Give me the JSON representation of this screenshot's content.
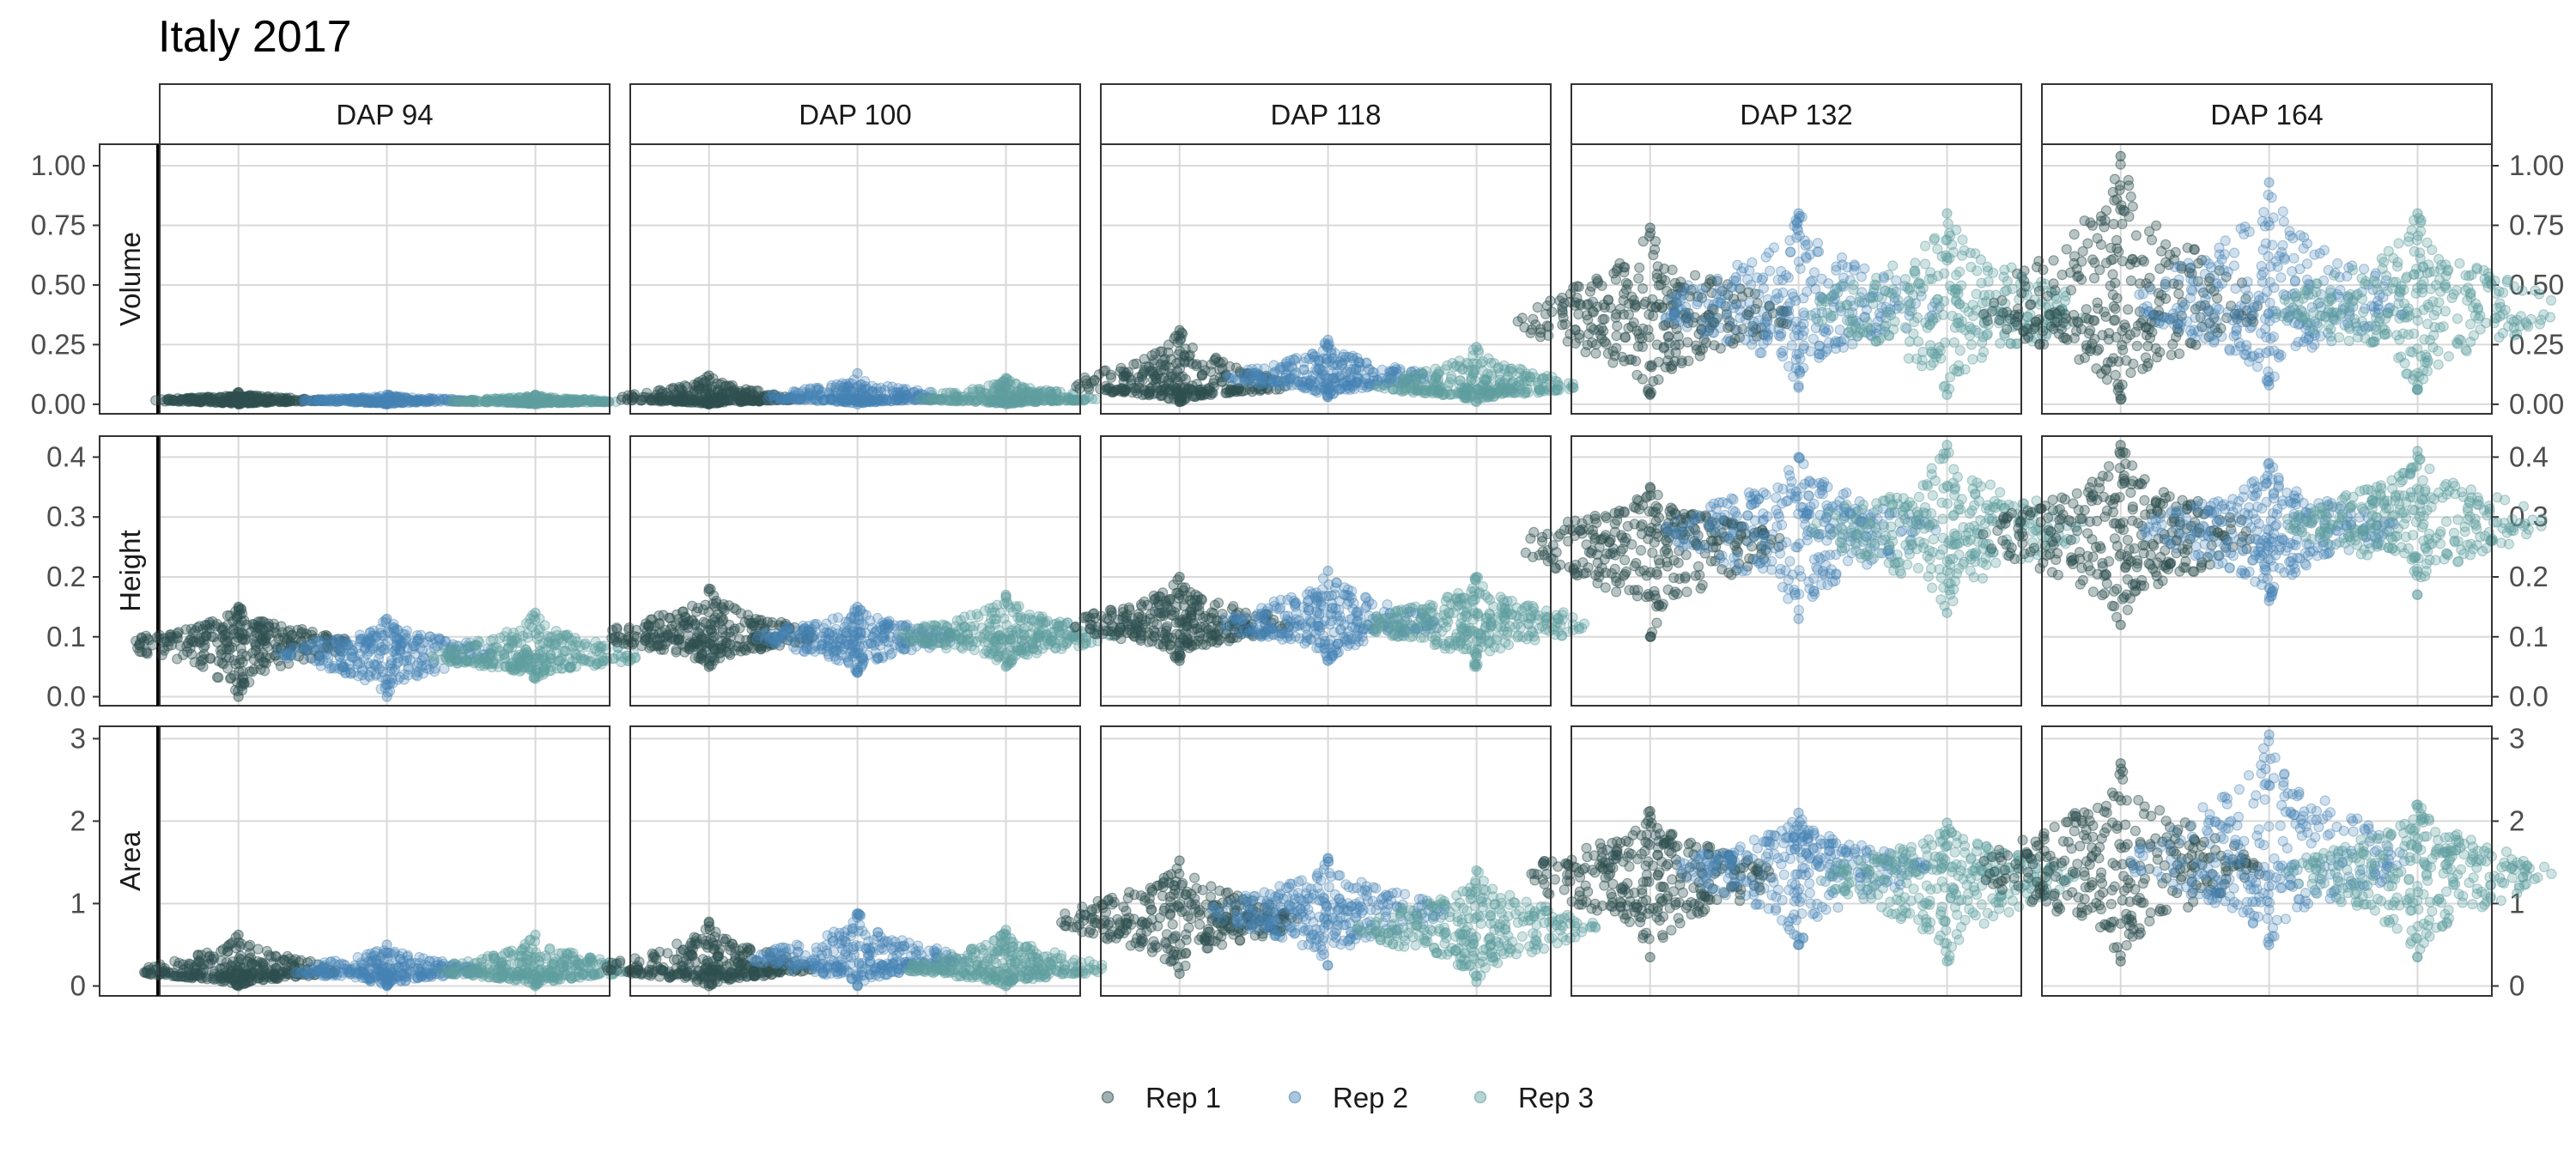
{
  "chart_data": {
    "type": "scatter",
    "subtype": "beeswarm-faceted",
    "title": "Italy 2017",
    "facet_columns": [
      "DAP 94",
      "DAP 100",
      "DAP 118",
      "DAP 132",
      "DAP 164"
    ],
    "facet_rows": [
      {
        "name": "Volume",
        "ylim": [
          -0.04,
          1.09
        ],
        "ticks": [
          0,
          0.25,
          0.5,
          0.75,
          1.0
        ],
        "tick_labels": [
          "0.00",
          "0.25",
          "0.50",
          "0.75",
          "1.00"
        ]
      },
      {
        "name": "Height",
        "ylim": [
          -0.015,
          0.435
        ],
        "ticks": [
          0,
          0.1,
          0.2,
          0.3,
          0.4
        ],
        "tick_labels": [
          "0.0",
          "0.1",
          "0.2",
          "0.3",
          "0.4"
        ]
      },
      {
        "name": "Area",
        "ylim": [
          -0.12,
          3.15
        ],
        "ticks": [
          0,
          1,
          2,
          3
        ],
        "tick_labels": [
          "0",
          "1",
          "2",
          "3"
        ]
      }
    ],
    "series": [
      {
        "name": "Rep 1",
        "color": "#2f4f4f"
      },
      {
        "name": "Rep 2",
        "color": "#4682b4"
      },
      {
        "name": "Rep 3",
        "color": "#5f9ea0"
      }
    ],
    "distributions": {
      "Volume": {
        "DAP 94": [
          {
            "median": 0.015,
            "min": 0.0,
            "max": 0.05
          },
          {
            "median": 0.015,
            "min": 0.0,
            "max": 0.04
          },
          {
            "median": 0.012,
            "min": 0.0,
            "max": 0.04
          }
        ],
        "DAP 100": [
          {
            "median": 0.02,
            "min": 0.0,
            "max": 0.12
          },
          {
            "median": 0.025,
            "min": 0.0,
            "max": 0.13
          },
          {
            "median": 0.02,
            "min": 0.0,
            "max": 0.11
          }
        ],
        "DAP 118": [
          {
            "median": 0.07,
            "min": 0.01,
            "max": 0.31
          },
          {
            "median": 0.11,
            "min": 0.03,
            "max": 0.27
          },
          {
            "median": 0.07,
            "min": 0.01,
            "max": 0.24
          }
        ],
        "DAP 132": [
          {
            "median": 0.36,
            "min": 0.04,
            "max": 0.74
          },
          {
            "median": 0.4,
            "min": 0.07,
            "max": 0.8
          },
          {
            "median": 0.39,
            "min": 0.04,
            "max": 0.8
          }
        ],
        "DAP 164": [
          {
            "median": 0.38,
            "min": 0.02,
            "max": 1.04
          },
          {
            "median": 0.41,
            "min": 0.08,
            "max": 0.93
          },
          {
            "median": 0.39,
            "min": 0.06,
            "max": 0.8
          }
        ]
      },
      "Height": {
        "DAP 94": [
          {
            "median": 0.09,
            "min": 0.0,
            "max": 0.15
          },
          {
            "median": 0.075,
            "min": 0.0,
            "max": 0.13
          },
          {
            "median": 0.065,
            "min": 0.03,
            "max": 0.14
          }
        ],
        "DAP 100": [
          {
            "median": 0.1,
            "min": 0.05,
            "max": 0.18
          },
          {
            "median": 0.1,
            "min": 0.04,
            "max": 0.15
          },
          {
            "median": 0.1,
            "min": 0.05,
            "max": 0.17
          }
        ],
        "DAP 118": [
          {
            "median": 0.12,
            "min": 0.06,
            "max": 0.2
          },
          {
            "median": 0.12,
            "min": 0.06,
            "max": 0.21
          },
          {
            "median": 0.12,
            "min": 0.05,
            "max": 0.2
          }
        ],
        "DAP 132": [
          {
            "median": 0.26,
            "min": 0.1,
            "max": 0.35
          },
          {
            "median": 0.28,
            "min": 0.13,
            "max": 0.4
          },
          {
            "median": 0.28,
            "min": 0.14,
            "max": 0.42
          }
        ],
        "DAP 164": [
          {
            "median": 0.27,
            "min": 0.12,
            "max": 0.42
          },
          {
            "median": 0.28,
            "min": 0.16,
            "max": 0.39
          },
          {
            "median": 0.29,
            "min": 0.17,
            "max": 0.41
          }
        ]
      },
      "Area": {
        "DAP 94": [
          {
            "median": 0.17,
            "min": 0.0,
            "max": 0.62
          },
          {
            "median": 0.18,
            "min": 0.0,
            "max": 0.5
          },
          {
            "median": 0.18,
            "min": 0.0,
            "max": 0.62
          }
        ],
        "DAP 100": [
          {
            "median": 0.2,
            "min": 0.0,
            "max": 0.78
          },
          {
            "median": 0.3,
            "min": 0.0,
            "max": 0.88
          },
          {
            "median": 0.2,
            "min": 0.0,
            "max": 0.68
          }
        ],
        "DAP 118": [
          {
            "median": 0.8,
            "min": 0.15,
            "max": 1.52
          },
          {
            "median": 0.9,
            "min": 0.25,
            "max": 1.55
          },
          {
            "median": 0.7,
            "min": 0.05,
            "max": 1.4
          }
        ],
        "DAP 132": [
          {
            "median": 1.35,
            "min": 0.35,
            "max": 2.12
          },
          {
            "median": 1.45,
            "min": 0.5,
            "max": 2.1
          },
          {
            "median": 1.35,
            "min": 0.3,
            "max": 1.98
          }
        ],
        "DAP 164": [
          {
            "median": 1.4,
            "min": 0.3,
            "max": 2.7
          },
          {
            "median": 1.5,
            "min": 0.5,
            "max": 3.05
          },
          {
            "median": 1.4,
            "min": 0.35,
            "max": 2.2
          }
        ]
      }
    },
    "grid": true,
    "legend_position": "bottom"
  }
}
